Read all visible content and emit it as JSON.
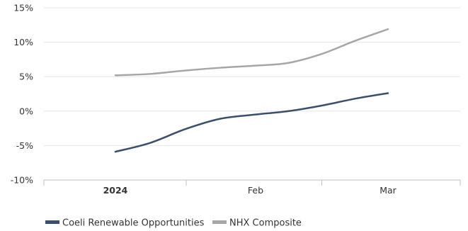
{
  "chart_data": {
    "type": "line",
    "categories": [
      "2024",
      "Feb",
      "Mar"
    ],
    "bold_categories": [
      "2024"
    ],
    "y_ticks": [
      "15%",
      "10%",
      "5%",
      "0%",
      "-5%",
      "-10%"
    ],
    "y_tick_values": [
      15,
      10,
      5,
      0,
      -5,
      -10
    ],
    "ylim": [
      -10,
      15
    ],
    "grid": true,
    "legend_position": "bottom-left",
    "series": [
      {
        "name": "Coeli Renewable Opportunities",
        "color": "#3a4f6e",
        "x": [
          0,
          0.25,
          0.5,
          0.75,
          1.0,
          1.25,
          1.5,
          1.75,
          2.0
        ],
        "values": [
          -5.9,
          -4.6,
          -2.6,
          -1.1,
          -0.5,
          0.0,
          0.8,
          1.8,
          2.6
        ]
      },
      {
        "name": "NHX Composite",
        "color": "#a6a6a6",
        "x": [
          0,
          0.25,
          0.5,
          0.75,
          1.0,
          1.25,
          1.5,
          1.75,
          2.0
        ],
        "values": [
          5.2,
          5.4,
          5.9,
          6.3,
          6.6,
          7.0,
          8.3,
          10.2,
          11.9
        ]
      }
    ]
  }
}
